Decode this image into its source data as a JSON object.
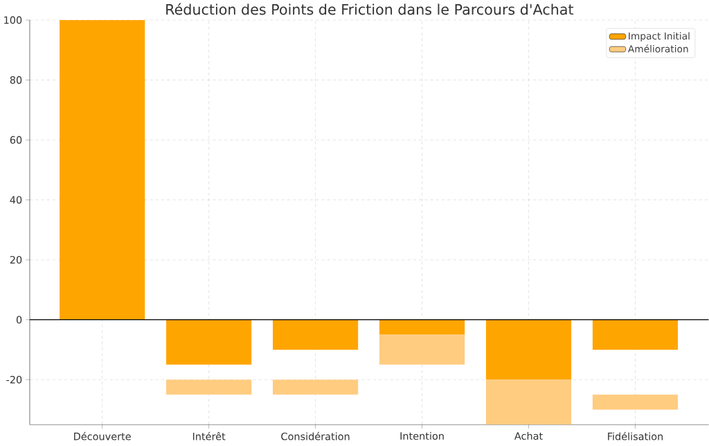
{
  "chart_data": {
    "type": "bar",
    "title": "Réduction des Points de Friction dans le Parcours d'Achat",
    "categories": [
      "Découverte",
      "Intérêt",
      "Considération",
      "Intention",
      "Achat",
      "Fidélisation"
    ],
    "series": [
      {
        "name": "Impact Initial",
        "color": "#ffa500",
        "base": [
          0,
          0,
          0,
          0,
          0,
          0
        ],
        "values": [
          100,
          -15,
          -10,
          -5,
          -20,
          -10
        ]
      },
      {
        "name": "Amélioration",
        "color": "#ffcc80",
        "base": [
          null,
          -20,
          -20,
          -5,
          -20,
          -25
        ],
        "values": [
          null,
          -5,
          -5,
          -10,
          -15,
          -5
        ]
      }
    ],
    "ylim": [
      -35,
      100
    ],
    "yticks": [
      -20,
      0,
      20,
      40,
      60,
      80,
      100
    ],
    "grid": true,
    "legend": "top right",
    "ref_lines": [
      {
        "axis": "y",
        "value": 0,
        "color": "#000000"
      }
    ]
  }
}
